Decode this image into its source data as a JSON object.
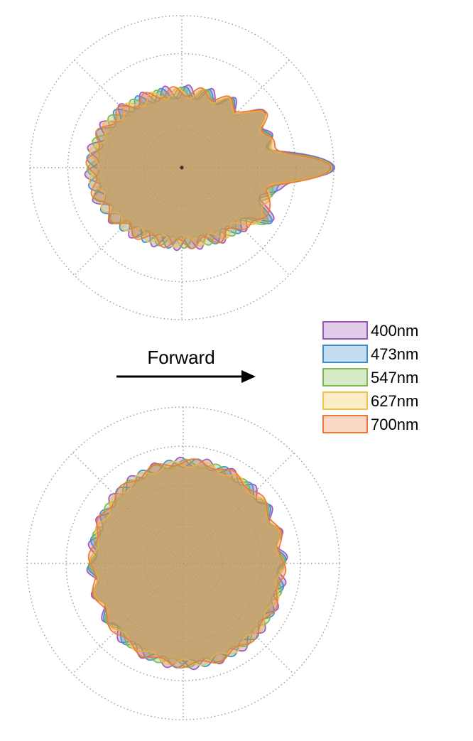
{
  "annotation": {
    "label": "Forward"
  },
  "colors": {
    "grid": "#999999",
    "arrow": "#000000"
  },
  "chart_data": [
    {
      "type": "polar",
      "plot": "top",
      "grid": true,
      "rings": 4,
      "spokes_deg": 45,
      "rlim": [
        0,
        4
      ],
      "legend_placement": "none",
      "shape": {
        "base_radius_x": 2.4,
        "base_radius_y": 2.0,
        "lobe_center_x_offset": 0.02
      },
      "series": [
        {
          "name": "400nm",
          "color": "#9b59b6",
          "ripple_count": 22,
          "ripple_amp": 0.18,
          "phase": 0.0,
          "scale": 1.0,
          "spike_length": 4.0
        },
        {
          "name": "473nm",
          "color": "#3a8fd0",
          "ripple_count": 21,
          "ripple_amp": 0.16,
          "phase": 0.6,
          "scale": 0.99,
          "spike_length": 3.96
        },
        {
          "name": "547nm",
          "color": "#7cb84a",
          "ripple_count": 20,
          "ripple_amp": 0.15,
          "phase": 1.2,
          "scale": 0.985,
          "spike_length": 3.93
        },
        {
          "name": "627nm",
          "color": "#f0c24a",
          "ripple_count": 19,
          "ripple_amp": 0.14,
          "phase": 1.9,
          "scale": 0.98,
          "spike_length": 3.92
        },
        {
          "name": "700nm",
          "color": "#ea7a3a",
          "ripple_count": 18,
          "ripple_amp": 0.13,
          "phase": 2.6,
          "scale": 1.005,
          "spike_length": 3.9
        }
      ]
    },
    {
      "type": "polar",
      "plot": "bottom",
      "grid": true,
      "rings": 4,
      "spokes_deg": 45,
      "rlim": [
        0,
        4
      ],
      "legend_placement": "right-middle",
      "shape": {
        "base_radius_x": 2.45,
        "base_radius_y": 2.6,
        "lobe_center_x_offset": 0.1
      },
      "series": [
        {
          "name": "400nm",
          "color": "#9b59b6",
          "ripple_count": 24,
          "ripple_amp": 0.12,
          "phase": 0.0,
          "scale": 1.0
        },
        {
          "name": "473nm",
          "color": "#3a8fd0",
          "ripple_count": 22,
          "ripple_amp": 0.11,
          "phase": 0.7,
          "scale": 0.99
        },
        {
          "name": "547nm",
          "color": "#7cb84a",
          "ripple_count": 20,
          "ripple_amp": 0.1,
          "phase": 1.3,
          "scale": 0.985
        },
        {
          "name": "627nm",
          "color": "#f0c24a",
          "ripple_count": 18,
          "ripple_amp": 0.09,
          "phase": 2.0,
          "scale": 0.98
        },
        {
          "name": "700nm",
          "color": "#ea7a3a",
          "ripple_count": 16,
          "ripple_amp": 0.08,
          "phase": 2.7,
          "scale": 1.0
        }
      ]
    }
  ]
}
